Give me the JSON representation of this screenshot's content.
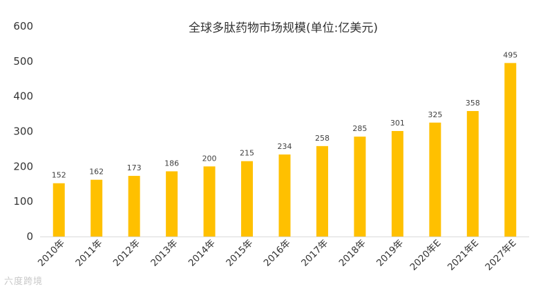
{
  "chart_data": {
    "type": "bar",
    "title": "全球多肽药物市场规模(单位:亿美元)",
    "xlabel": "",
    "ylabel": "",
    "categories": [
      "2010年",
      "2011年",
      "2012年",
      "2013年",
      "2014年",
      "2015年",
      "2016年",
      "2017年",
      "2018年",
      "2019年",
      "2020年E",
      "2021年E",
      "2027年E"
    ],
    "values": [
      152,
      162,
      173,
      186,
      200,
      215,
      234,
      258,
      285,
      301,
      325,
      358,
      495
    ],
    "ylim": [
      0,
      600
    ],
    "yticks": [
      0,
      100,
      200,
      300,
      400,
      500,
      600
    ],
    "grid": false,
    "legend": "none",
    "colors": {
      "bar": "#FFC000",
      "axis": "#d9d9d9",
      "text": "#333333"
    }
  },
  "watermark": "六度跨境"
}
